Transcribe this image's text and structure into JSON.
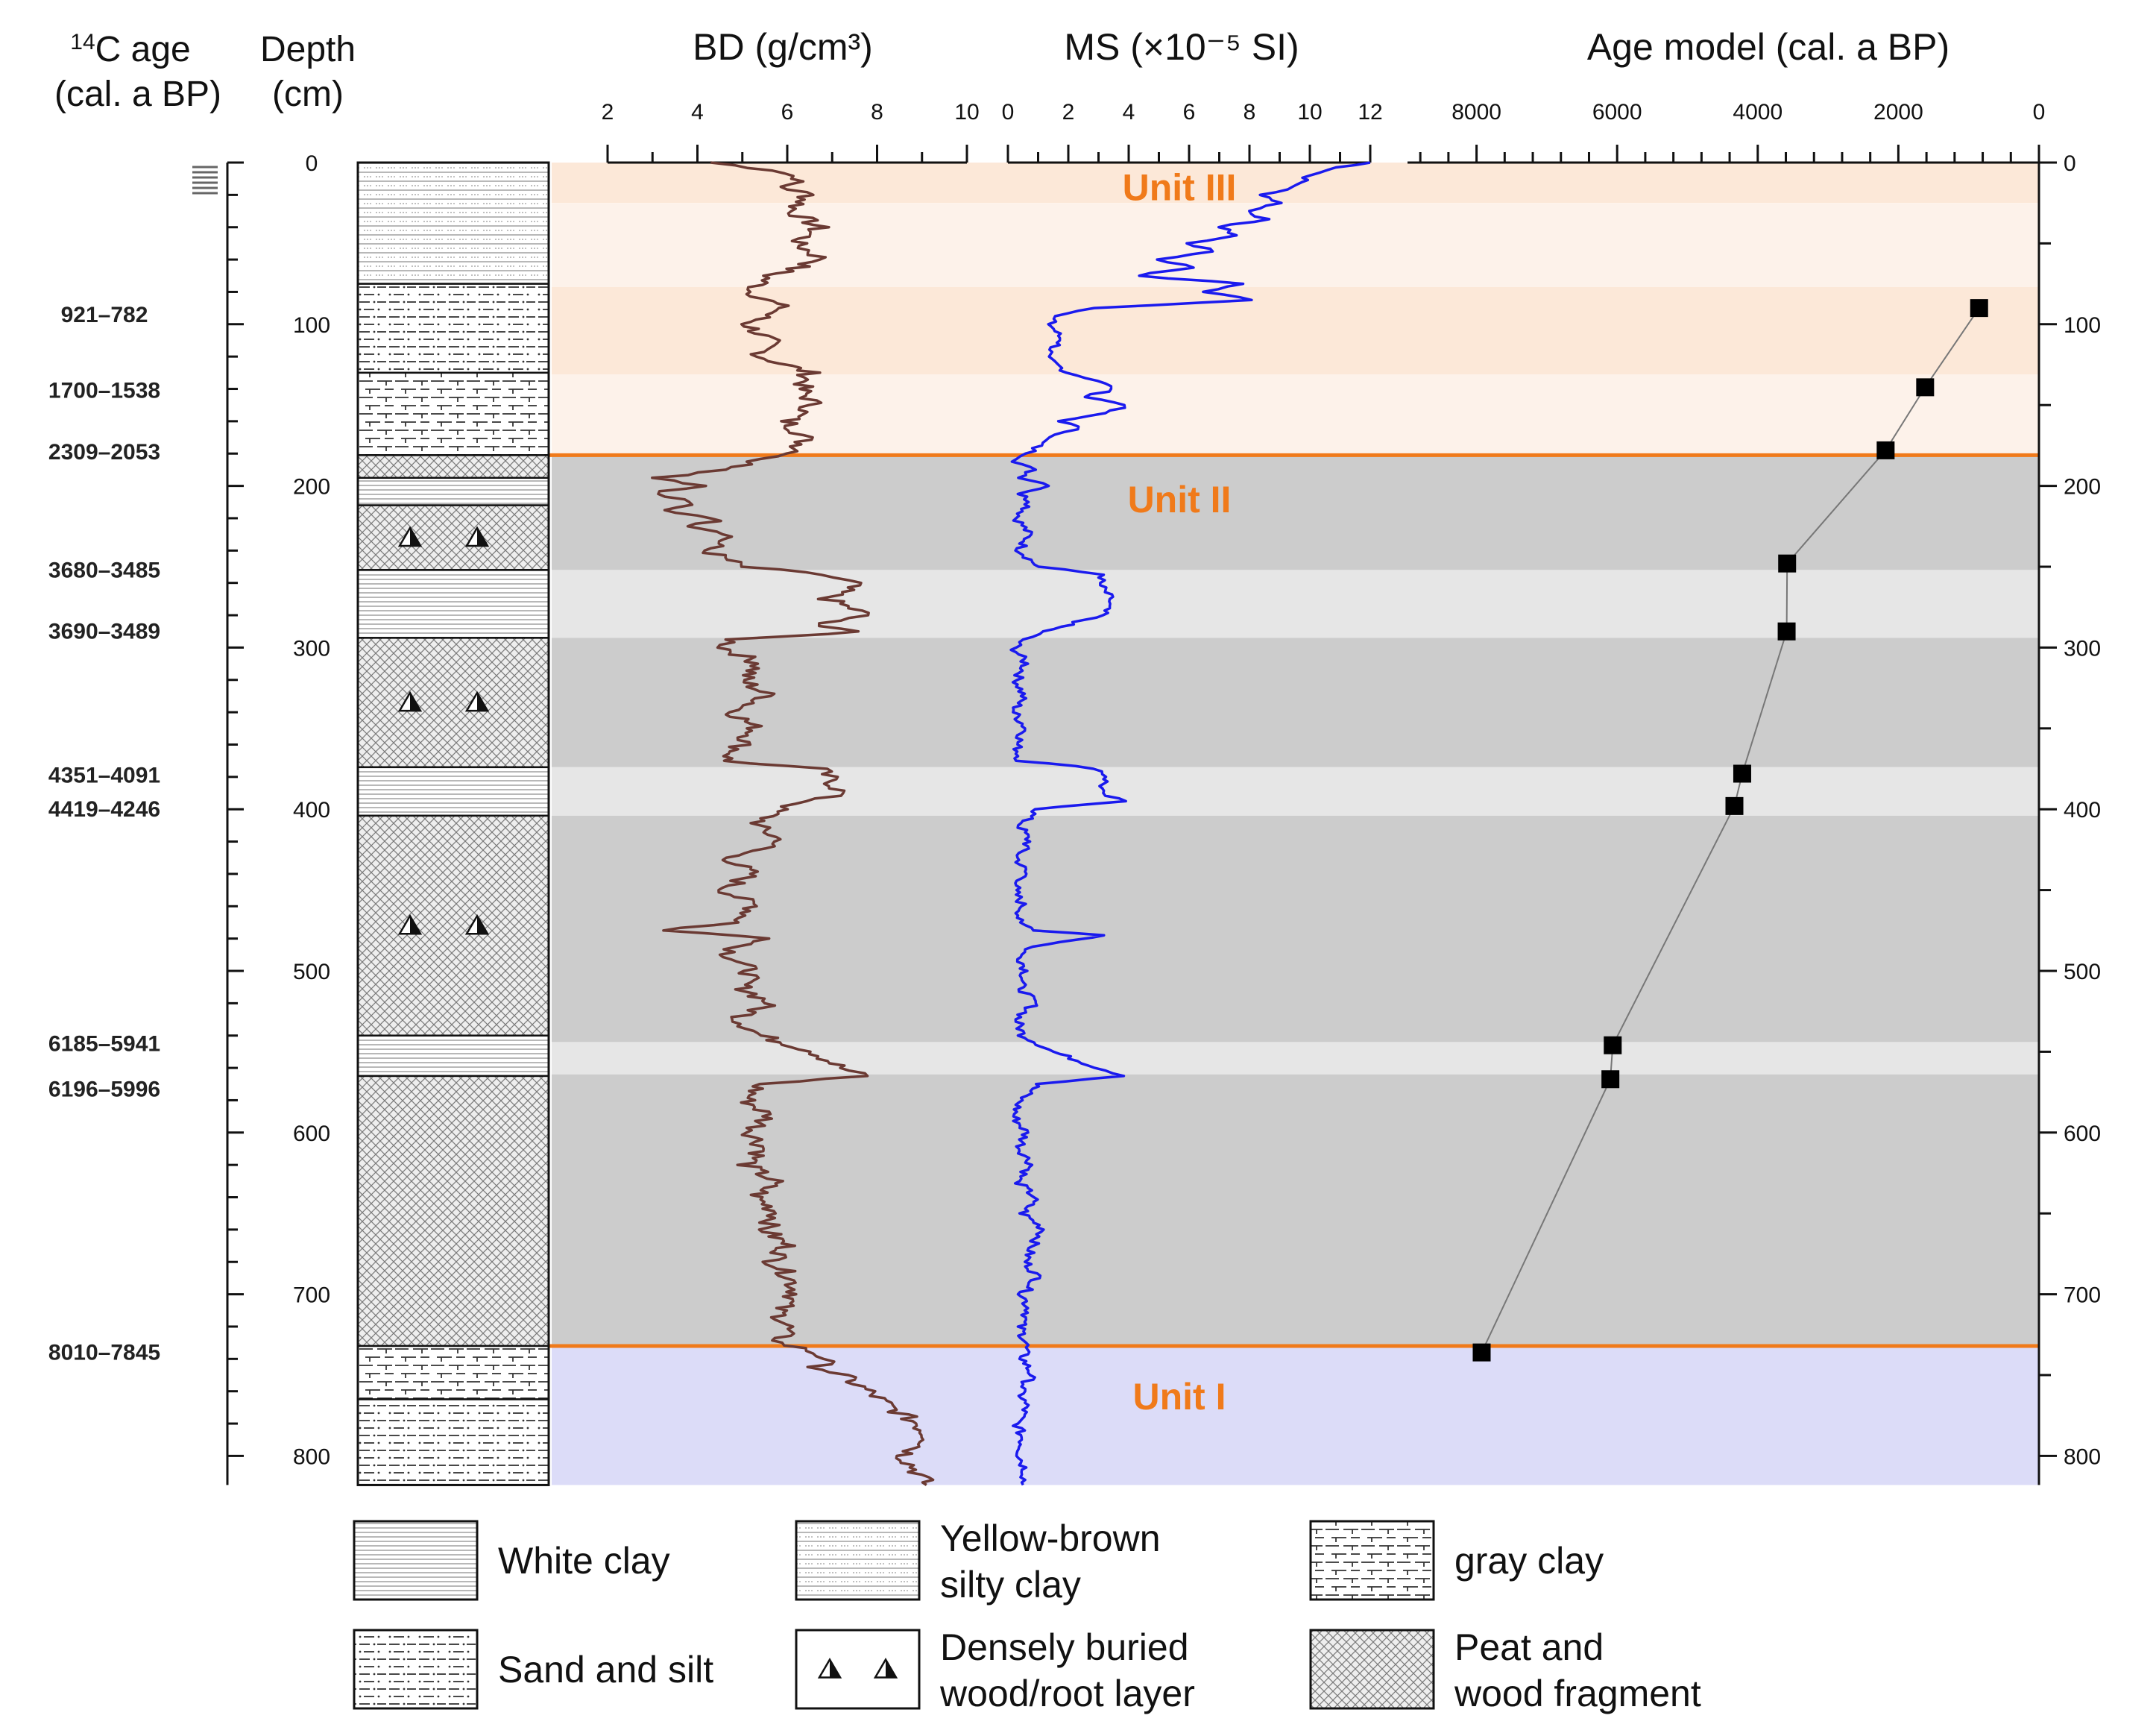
{
  "headers": {
    "age_sup": "14",
    "age_main": "C age",
    "age_sub": "(cal. a BP)",
    "depth_main": "Depth",
    "depth_sub": "(cm)",
    "bd_title": "BD (g/cm³)",
    "ms_title": "MS (×10⁻⁵ SI)",
    "age_model_title": "Age model (cal. a BP)"
  },
  "depth_ticks": [
    "0",
    "100",
    "200",
    "300",
    "400",
    "500",
    "600",
    "700",
    "800"
  ],
  "unit_labels": [
    {
      "text": "Unit III",
      "depth": 15
    },
    {
      "text": "Unit II",
      "depth": 208
    },
    {
      "text": "Unit I",
      "depth": 763
    }
  ],
  "colors": {
    "unit3": "#fce8d8",
    "unit3_alt": "#fdf2ea",
    "unit2": "#cccccc",
    "unit2_light": "#e6e6e6",
    "unit1": "#dcdcf8",
    "boundary": "#f07a1a",
    "unit_text": "#f07a1a",
    "bd": "#6b3a33",
    "ms": "#1a1aee"
  },
  "boundaries_depth": [
    181,
    732
  ],
  "c14_ages": [
    {
      "label": "921–782",
      "depth": 94
    },
    {
      "label": "1700–1538",
      "depth": 141
    },
    {
      "label": "2309–2053",
      "depth": 179
    },
    {
      "label": "3680–3485",
      "depth": 252
    },
    {
      "label": "3690–3489",
      "depth": 290
    },
    {
      "label": "4351–4091",
      "depth": 379
    },
    {
      "label": "4419–4246",
      "depth": 400
    },
    {
      "label": "6185–5941",
      "depth": 545
    },
    {
      "label": "6196–5996",
      "depth": 573
    },
    {
      "label": "8010–7845",
      "depth": 736
    }
  ],
  "lithology": [
    {
      "type": "yellow-brown",
      "top": 0,
      "bottom": 75
    },
    {
      "type": "sand",
      "top": 75,
      "bottom": 130
    },
    {
      "type": "gray",
      "top": 130,
      "bottom": 181
    },
    {
      "type": "peat",
      "top": 181,
      "bottom": 195
    },
    {
      "type": "white",
      "top": 195,
      "bottom": 212
    },
    {
      "type": "peat-wood",
      "top": 212,
      "bottom": 252
    },
    {
      "type": "white",
      "top": 252,
      "bottom": 294
    },
    {
      "type": "peat-wood",
      "top": 294,
      "bottom": 374
    },
    {
      "type": "white",
      "top": 374,
      "bottom": 404
    },
    {
      "type": "peat-wood",
      "top": 404,
      "bottom": 540
    },
    {
      "type": "white",
      "top": 540,
      "bottom": 565
    },
    {
      "type": "peat",
      "top": 565,
      "bottom": 732
    },
    {
      "type": "gray",
      "top": 732,
      "bottom": 765
    },
    {
      "type": "sand",
      "top": 765,
      "bottom": 818
    }
  ],
  "legend": [
    {
      "pattern": "white",
      "line1": "White clay",
      "line2": ""
    },
    {
      "pattern": "yellow-brown",
      "line1": "Yellow-brown",
      "line2": "silty clay"
    },
    {
      "pattern": "gray",
      "line1": "gray clay",
      "line2": ""
    },
    {
      "pattern": "sand",
      "line1": "Sand and silt",
      "line2": ""
    },
    {
      "pattern": "wood",
      "line1": "Densely buried",
      "line2": "wood/root layer"
    },
    {
      "pattern": "peat",
      "line1": "Peat and",
      "line2": "wood fragment"
    }
  ],
  "chart_data": [
    {
      "type": "line",
      "title": "BD (g/cm³)",
      "x_axis": {
        "range": [
          2,
          10
        ],
        "ticks": [
          "2",
          "4",
          "6",
          "8",
          "10"
        ]
      },
      "y_axis": {
        "label": "Depth (cm)",
        "range": [
          0,
          818
        ],
        "inverted": true
      },
      "series": [
        {
          "depth": [
            0,
            5,
            10,
            15,
            20,
            30,
            40,
            50,
            60,
            70,
            80,
            90,
            100,
            110,
            120,
            130,
            140,
            150,
            160,
            170,
            180,
            185,
            190,
            195,
            200,
            205,
            210,
            215,
            220,
            225,
            230,
            240,
            250,
            255,
            260,
            270,
            280,
            285,
            290,
            295,
            300,
            310,
            320,
            330,
            340,
            350,
            360,
            370,
            375,
            380,
            390,
            395,
            400,
            410,
            420,
            430,
            440,
            450,
            460,
            470,
            475,
            480,
            485,
            490,
            500,
            510,
            520,
            530,
            540,
            550,
            560,
            565,
            570,
            580,
            590,
            600,
            610,
            620,
            630,
            640,
            650,
            660,
            670,
            680,
            690,
            700,
            710,
            720,
            730,
            735,
            740,
            745,
            750,
            760,
            770,
            780,
            790,
            800,
            810,
            818
          ],
          "value": [
            4.3,
            5.8,
            6.3,
            5.9,
            6.5,
            6.1,
            6.7,
            6.2,
            6.8,
            5.6,
            5.2,
            5.9,
            5.1,
            5.6,
            5.4,
            6.5,
            6.3,
            6.6,
            6.0,
            6.4,
            6.2,
            5.2,
            4.8,
            3.2,
            4.2,
            3.0,
            3.9,
            3.2,
            4.5,
            4.0,
            4.8,
            4.2,
            5.0,
            6.8,
            7.5,
            6.9,
            7.8,
            6.6,
            7.6,
            4.8,
            4.6,
            5.4,
            5.0,
            5.6,
            4.8,
            5.3,
            5.0,
            4.6,
            6.7,
            6.9,
            7.2,
            6.5,
            5.8,
            5.3,
            5.9,
            4.7,
            5.2,
            4.6,
            5.3,
            4.9,
            3.2,
            5.8,
            4.9,
            4.7,
            5.2,
            5.0,
            5.6,
            4.9,
            5.4,
            6.6,
            7.2,
            7.7,
            5.4,
            5.1,
            5.6,
            5.2,
            5.5,
            5.1,
            5.7,
            5.3,
            5.8,
            5.5,
            6.0,
            5.7,
            6.1,
            6.2,
            5.8,
            6.0,
            5.8,
            6.5,
            6.9,
            6.7,
            7.2,
            7.8,
            8.3,
            8.9,
            9.2,
            8.6,
            8.9,
            9.1
          ]
        }
      ]
    },
    {
      "type": "line",
      "title": "MS (×10⁻⁵ SI)",
      "x_axis": {
        "range": [
          0,
          12
        ],
        "ticks": [
          "0",
          "2",
          "4",
          "6",
          "8",
          "10",
          "12"
        ]
      },
      "y_axis": {
        "label": "Depth (cm)",
        "range": [
          0,
          818
        ],
        "inverted": true
      },
      "series": [
        {
          "depth": [
            0,
            3,
            8,
            15,
            20,
            25,
            30,
            35,
            40,
            45,
            50,
            55,
            60,
            65,
            70,
            75,
            80,
            85,
            90,
            95,
            100,
            110,
            120,
            130,
            135,
            140,
            145,
            150,
            155,
            160,
            165,
            170,
            175,
            180,
            185,
            190,
            195,
            200,
            205,
            210,
            220,
            230,
            240,
            250,
            255,
            260,
            270,
            280,
            290,
            295,
            300,
            310,
            320,
            330,
            340,
            350,
            360,
            370,
            375,
            380,
            390,
            395,
            400,
            410,
            420,
            430,
            440,
            450,
            460,
            470,
            475,
            478,
            485,
            490,
            500,
            510,
            520,
            530,
            540,
            550,
            560,
            565,
            570,
            580,
            590,
            600,
            610,
            620,
            630,
            640,
            650,
            660,
            670,
            680,
            690,
            700,
            710,
            720,
            730,
            740,
            750,
            760,
            770,
            780,
            790,
            800,
            810,
            818
          ],
          "value": [
            12.0,
            11.0,
            10.0,
            9.5,
            8.5,
            9.0,
            8.0,
            8.5,
            7.0,
            7.6,
            6.0,
            6.8,
            5.0,
            6.2,
            4.2,
            7.8,
            6.5,
            8.2,
            3.0,
            1.5,
            1.4,
            1.8,
            1.2,
            2.0,
            3.0,
            3.5,
            2.6,
            4.0,
            3.1,
            1.8,
            2.4,
            1.3,
            1.0,
            0.7,
            0.3,
            0.8,
            0.5,
            1.5,
            0.4,
            0.8,
            0.3,
            0.7,
            0.4,
            1.0,
            3.2,
            3.0,
            3.4,
            3.1,
            1.2,
            0.5,
            0.2,
            0.6,
            0.3,
            0.5,
            0.2,
            0.6,
            0.3,
            0.4,
            3.0,
            3.3,
            3.0,
            3.8,
            1.0,
            0.4,
            0.7,
            0.3,
            0.6,
            0.2,
            0.5,
            0.3,
            1.0,
            3.3,
            0.8,
            0.4,
            0.6,
            0.4,
            0.9,
            0.3,
            0.5,
            1.5,
            3.0,
            3.9,
            1.0,
            0.4,
            0.2,
            0.6,
            0.4,
            0.8,
            0.3,
            0.9,
            0.5,
            1.2,
            0.8,
            0.6,
            1.0,
            0.5,
            0.7,
            0.4,
            0.6,
            0.5,
            0.8,
            0.4,
            0.6,
            0.3,
            0.5,
            0.4,
            0.6,
            0.5
          ]
        }
      ]
    },
    {
      "type": "scatter",
      "title": "Age model (cal. a BP)",
      "x_axis": {
        "range": [
          8000,
          0
        ],
        "ticks": [
          "8000",
          "6000",
          "4000",
          "2000",
          "0"
        ],
        "reversed": true
      },
      "y_axis": {
        "label": "Depth (cm)",
        "range": [
          0,
          818
        ],
        "inverted": true,
        "ticks": [
          "0",
          "100",
          "200",
          "300",
          "400",
          "500",
          "600",
          "700",
          "800"
        ]
      },
      "series": [
        {
          "age": [
            851,
            1619,
            2181,
            3582,
            3589,
            4221,
            4332,
            6063,
            6096,
            7927
          ],
          "depth": [
            90,
            139,
            178,
            248,
            290,
            378,
            398,
            546,
            567,
            736
          ]
        }
      ]
    }
  ]
}
